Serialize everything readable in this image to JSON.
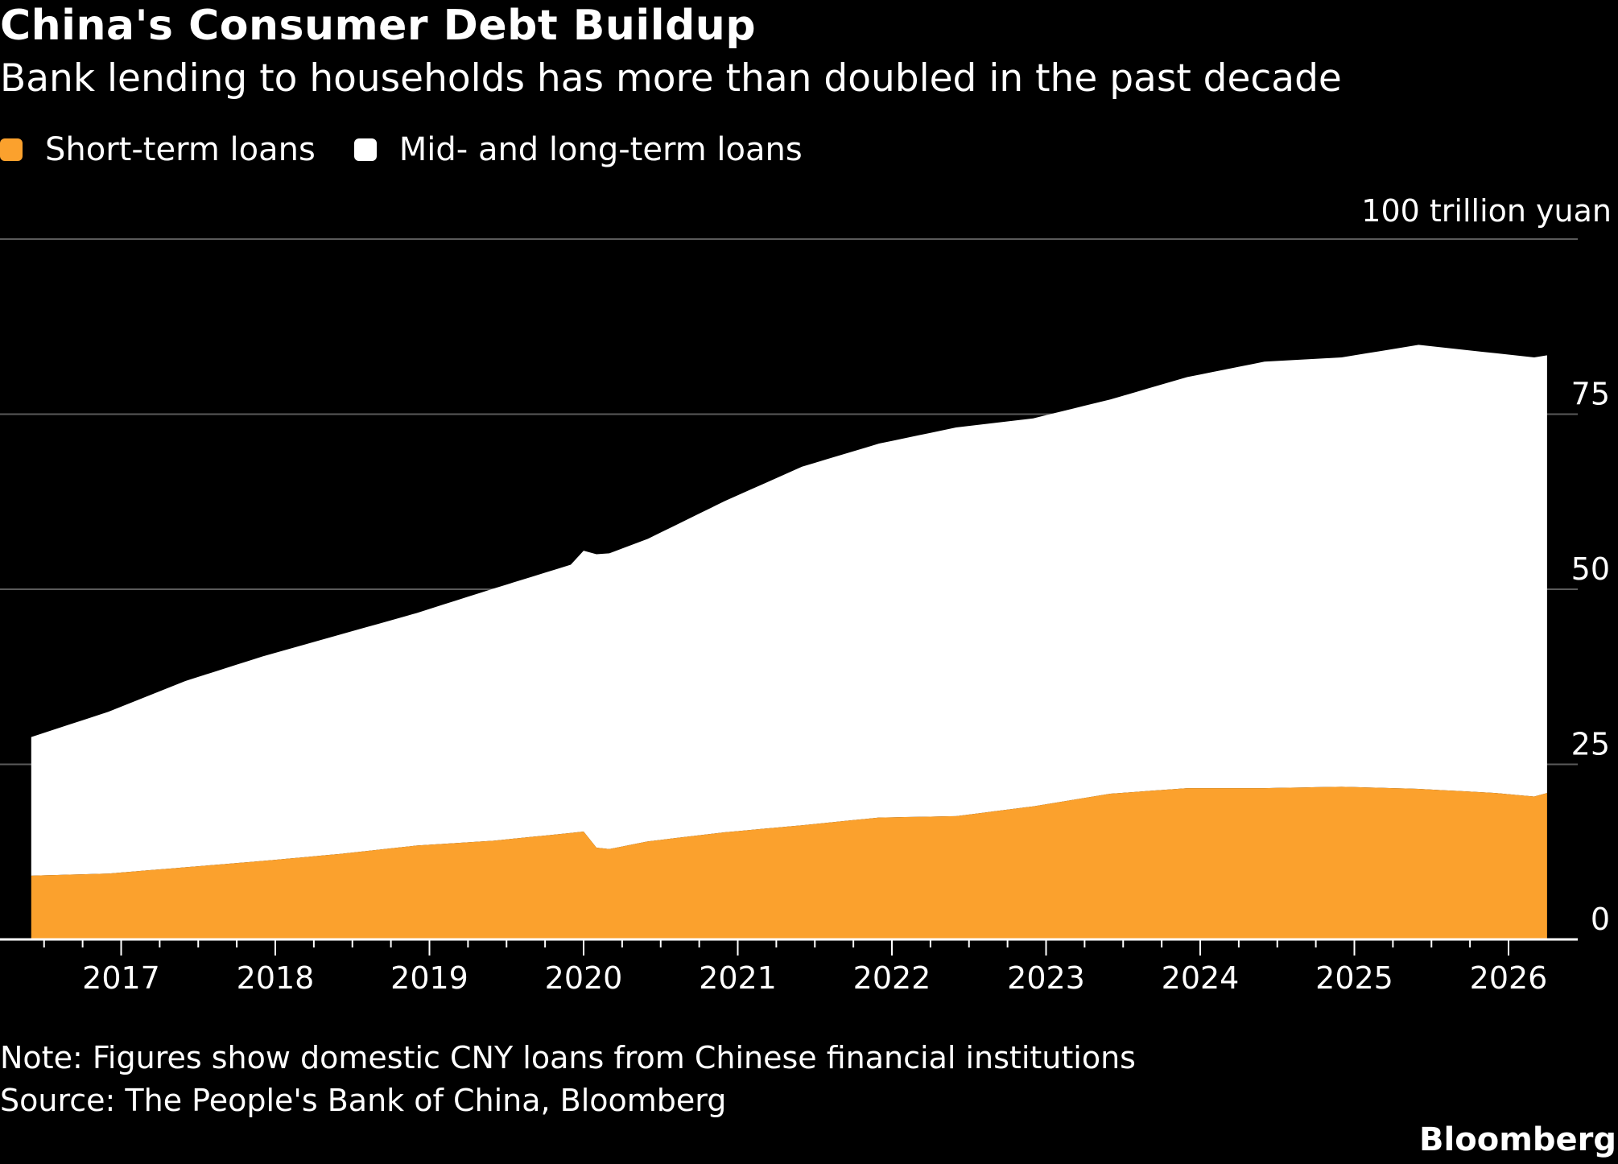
{
  "title": "China's Consumer Debt Buildup",
  "subtitle": "Bank lending to households has more than doubled in the past decade",
  "unit_label": "100 trillion yuan",
  "note": "Note: Figures show domestic CNY loans from Chinese financial institutions",
  "source": "Source: The People's Bank of China, Bloomberg",
  "brand": "Bloomberg",
  "colors": {
    "background": "#000000",
    "short_term": "#fba12d",
    "mid_long_term": "#ffffff",
    "gridline": "#5a5a5a",
    "axis": "#ffffff"
  },
  "chart_data": {
    "type": "area",
    "stacked": true,
    "y_ticks": [
      0,
      25,
      50,
      75
    ],
    "ylim": [
      0,
      100
    ],
    "x_ticks": [
      "2017",
      "2018",
      "2019",
      "2020",
      "2021",
      "2022",
      "2023",
      "2024",
      "2025",
      "2026"
    ],
    "grid": true,
    "legend_position": "top-left",
    "series": [
      {
        "name": "Short-term loans",
        "color": "#fba12d",
        "points": [
          [
            "2016-06",
            9.1
          ],
          [
            "2016-12",
            9.4
          ],
          [
            "2017-06",
            10.3
          ],
          [
            "2017-12",
            11.2
          ],
          [
            "2018-06",
            12.2
          ],
          [
            "2018-12",
            13.4
          ],
          [
            "2019-06",
            14.1
          ],
          [
            "2019-12",
            15.2
          ],
          [
            "2020-01",
            15.4
          ],
          [
            "2020-02",
            13.1
          ],
          [
            "2020-03",
            12.9
          ],
          [
            "2020-06",
            14.0
          ],
          [
            "2020-12",
            15.3
          ],
          [
            "2021-06",
            16.3
          ],
          [
            "2021-12",
            17.4
          ],
          [
            "2022-06",
            17.6
          ],
          [
            "2022-12",
            19.0
          ],
          [
            "2023-06",
            20.8
          ],
          [
            "2023-12",
            21.6
          ],
          [
            "2024-06",
            21.6
          ],
          [
            "2024-12",
            21.8
          ],
          [
            "2025-06",
            21.5
          ],
          [
            "2025-12",
            20.9
          ],
          [
            "2026-03",
            20.4
          ],
          [
            "2026-04",
            20.9
          ]
        ]
      },
      {
        "name": "Mid- and long-term loans",
        "color": "#ffffff",
        "points": [
          [
            "2016-06",
            19.8
          ],
          [
            "2016-12",
            23.1
          ],
          [
            "2017-06",
            26.6
          ],
          [
            "2017-12",
            29.2
          ],
          [
            "2018-06",
            31.3
          ],
          [
            "2018-12",
            33.2
          ],
          [
            "2019-06",
            36.0
          ],
          [
            "2019-12",
            38.3
          ],
          [
            "2020-02",
            41.9
          ],
          [
            "2020-06",
            43.2
          ],
          [
            "2020-12",
            47.3
          ],
          [
            "2021-06",
            51.2
          ],
          [
            "2021-12",
            53.4
          ],
          [
            "2022-06",
            55.5
          ],
          [
            "2022-12",
            55.4
          ],
          [
            "2023-06",
            56.3
          ],
          [
            "2023-12",
            58.7
          ],
          [
            "2024-06",
            60.9
          ],
          [
            "2024-12",
            61.3
          ],
          [
            "2025-06",
            63.4
          ],
          [
            "2025-12",
            62.8
          ],
          [
            "2026-03",
            62.7
          ],
          [
            "2026-04",
            62.5
          ]
        ]
      }
    ]
  }
}
